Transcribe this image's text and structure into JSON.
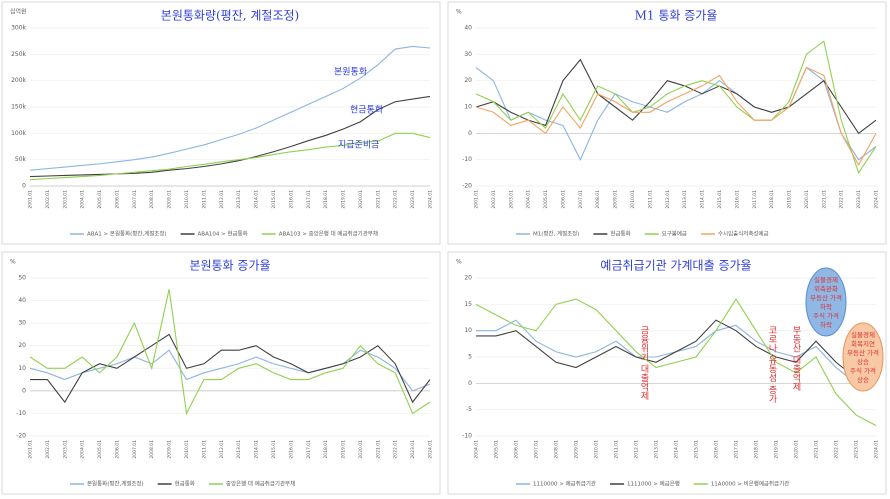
{
  "chart_data": [
    {
      "type": "line",
      "title": "본원통화량(평잔, 계절조정)",
      "y_label": "십억원",
      "categories": [
        "2001.01",
        "2002.01",
        "2003.01",
        "2004.01",
        "2005.01",
        "2006.01",
        "2007.01",
        "2008.01",
        "2009.01",
        "2010.01",
        "2011.01",
        "2012.01",
        "2013.01",
        "2014.01",
        "2015.01",
        "2016.01",
        "2017.01",
        "2018.01",
        "2019.01",
        "2020.01",
        "2021.01",
        "2022.01",
        "2023.01",
        "2024.01"
      ],
      "ylim": [
        0,
        300000
      ],
      "yticks": [
        0,
        {
          "value": 50000,
          "label": "50k"
        },
        {
          "value": 100000,
          "label": "100k"
        },
        {
          "value": 150000,
          "label": "150k"
        },
        {
          "value": 200000,
          "label": "200k"
        },
        {
          "value": 250000,
          "label": "250k"
        },
        {
          "value": 300000,
          "label": "300k"
        }
      ],
      "grid": true,
      "series": [
        {
          "name": "ABA1 > 본원통화(평잔,계절조정)",
          "color": "#8db4e2",
          "values": [
            30000,
            33000,
            36000,
            39000,
            42000,
            46000,
            50000,
            55000,
            62000,
            70000,
            78000,
            88000,
            98000,
            110000,
            125000,
            140000,
            155000,
            170000,
            185000,
            205000,
            230000,
            260000,
            265000,
            262000
          ]
        },
        {
          "name": "ABA104 > 현금통화",
          "color": "#404040",
          "values": [
            18000,
            19000,
            20000,
            21000,
            22000,
            23000,
            24000,
            26000,
            30000,
            33000,
            37000,
            42000,
            48000,
            56000,
            65000,
            75000,
            86000,
            96000,
            108000,
            122000,
            145000,
            160000,
            165000,
            170000
          ]
        },
        {
          "name": "ABA103 > 중앙은행 대 예금취급기관부채",
          "color": "#92d050",
          "values": [
            12000,
            14000,
            16000,
            18000,
            20000,
            23000,
            26000,
            29000,
            32000,
            37000,
            41000,
            46000,
            50000,
            54000,
            60000,
            65000,
            69000,
            74000,
            77000,
            83000,
            85000,
            100000,
            100000,
            92000
          ]
        }
      ],
      "annotations": [
        "본원통화",
        "현금통화",
        "지급준비금"
      ]
    },
    {
      "type": "line",
      "title": "M1 통화 증가율",
      "y_label": "%",
      "categories": [
        "2001.01",
        "2002.01",
        "2003.01",
        "2004.01",
        "2005.01",
        "2006.01",
        "2007.01",
        "2008.01",
        "2009.01",
        "2010.01",
        "2011.01",
        "2012.01",
        "2013.01",
        "2014.01",
        "2015.01",
        "2016.01",
        "2017.01",
        "2018.01",
        "2019.01",
        "2020.01",
        "2021.01",
        "2022.01",
        "2023.01",
        "2024.01"
      ],
      "ylim": [
        -20,
        40
      ],
      "yticks": [
        -20,
        -10,
        0,
        10,
        20,
        30,
        40
      ],
      "grid": true,
      "series": [
        {
          "name": "M1(평잔, 계절조정)",
          "color": "#8db4e2",
          "values": [
            25,
            20,
            5,
            8,
            5,
            3,
            -10,
            5,
            15,
            12,
            10,
            8,
            12,
            15,
            20,
            15,
            10,
            8,
            10,
            25,
            20,
            0,
            -10,
            -5
          ]
        },
        {
          "name": "현금통화",
          "color": "#404040",
          "values": [
            10,
            12,
            8,
            5,
            3,
            20,
            28,
            15,
            10,
            5,
            12,
            20,
            18,
            15,
            18,
            15,
            10,
            8,
            10,
            15,
            20,
            10,
            0,
            5
          ]
        },
        {
          "name": "요구불예금",
          "color": "#92d050",
          "values": [
            15,
            12,
            5,
            8,
            2,
            15,
            5,
            18,
            15,
            8,
            10,
            15,
            18,
            20,
            18,
            10,
            5,
            5,
            12,
            30,
            35,
            5,
            -15,
            -5
          ]
        },
        {
          "name": "수시입출식저축성예금",
          "color": "#f4a460",
          "values": [
            10,
            8,
            3,
            5,
            0,
            10,
            2,
            15,
            12,
            8,
            8,
            12,
            15,
            18,
            22,
            12,
            5,
            5,
            10,
            25,
            22,
            0,
            -12,
            0
          ]
        }
      ]
    },
    {
      "type": "line",
      "title": "본원통화 증가율",
      "y_label": "%",
      "categories": [
        "2001.01",
        "2002.01",
        "2003.01",
        "2004.01",
        "2005.01",
        "2006.01",
        "2007.01",
        "2008.01",
        "2009.01",
        "2010.01",
        "2011.01",
        "2012.01",
        "2013.01",
        "2014.01",
        "2015.01",
        "2016.01",
        "2017.01",
        "2018.01",
        "2019.01",
        "2020.01",
        "2021.01",
        "2022.01",
        "2023.01",
        "2024.01"
      ],
      "ylim": [
        -20,
        50
      ],
      "yticks": [
        -20,
        -10,
        0,
        10,
        20,
        30,
        40,
        50
      ],
      "grid": true,
      "series": [
        {
          "name": "본원통화(평잔,계절조정)",
          "color": "#8db4e2",
          "values": [
            10,
            8,
            5,
            8,
            10,
            12,
            15,
            12,
            18,
            5,
            8,
            10,
            12,
            15,
            12,
            10,
            8,
            10,
            12,
            18,
            15,
            10,
            0,
            3
          ]
        },
        {
          "name": "현금통화",
          "color": "#404040",
          "values": [
            5,
            5,
            -5,
            8,
            12,
            10,
            15,
            20,
            25,
            10,
            12,
            18,
            18,
            20,
            15,
            12,
            8,
            10,
            12,
            15,
            20,
            12,
            -5,
            5
          ]
        },
        {
          "name": "중앙은행 대 예금취급기관부채",
          "color": "#92d050",
          "values": [
            15,
            10,
            10,
            15,
            8,
            15,
            30,
            10,
            45,
            -10,
            5,
            5,
            10,
            12,
            8,
            5,
            5,
            8,
            10,
            20,
            12,
            8,
            -10,
            -5
          ]
        }
      ]
    },
    {
      "type": "line",
      "title": "예금취급기관 가계대출 증가율",
      "y_label": "%",
      "categories": [
        "2004.01",
        "2005.01",
        "2006.01",
        "2007.01",
        "2008.01",
        "2009.01",
        "2010.01",
        "2011.01",
        "2012.01",
        "2013.01",
        "2014.01",
        "2015.01",
        "2016.01",
        "2017.01",
        "2018.01",
        "2019.01",
        "2020.01",
        "2021.01",
        "2022.01",
        "2023.01",
        "2024.01"
      ],
      "ylim": [
        -10,
        20
      ],
      "yticks": [
        -10,
        -5,
        0,
        5,
        10,
        15,
        20
      ],
      "grid": true,
      "series": [
        {
          "name": "1110000 > 예금취급기관",
          "color": "#8db4e2",
          "values": [
            10,
            10,
            12,
            8,
            6,
            5,
            6,
            8,
            5,
            5,
            6,
            7,
            10,
            11,
            8,
            6,
            5,
            7,
            3,
            0,
            1
          ]
        },
        {
          "name": "1111000 > 예금은행",
          "color": "#404040",
          "values": [
            9,
            9,
            10,
            7,
            4,
            3,
            5,
            7,
            5,
            4,
            6,
            8,
            12,
            10,
            7,
            5,
            4,
            8,
            4,
            1,
            2
          ]
        },
        {
          "name": "11A0000 > 비은행예금취급기관",
          "color": "#92d050",
          "values": [
            15,
            13,
            11,
            10,
            15,
            16,
            14,
            10,
            6,
            3,
            4,
            5,
            10,
            16,
            10,
            4,
            2,
            5,
            -2,
            -6,
            -8
          ]
        }
      ],
      "annotations": [
        "금융위기 대출억제",
        "코로나 유동성 증가",
        "부동산 대출억제"
      ],
      "notes": [
        [
          "실물경제",
          "위축완화",
          "부동산 가격",
          "하락",
          "주식 가격",
          "하락"
        ],
        [
          "실물경제",
          "회복지연",
          "부동산 가격",
          "상승",
          "주식 가격",
          "상승"
        ]
      ]
    }
  ]
}
